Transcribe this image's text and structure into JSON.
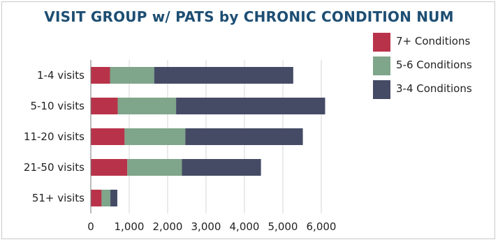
{
  "chart_data": {
    "type": "bar",
    "orientation": "horizontal",
    "stacked": true,
    "title": "VISIT GROUP w/ PATS by CHRONIC CONDITION NUM",
    "categories": [
      "1-4 visits",
      "5-10 visits",
      "11-20 visits",
      "21-50 visits",
      "51+ visits"
    ],
    "series": [
      {
        "name": "7+ Conditions",
        "color": "#b8334a",
        "values": [
          500,
          700,
          880,
          950,
          280
        ]
      },
      {
        "name": "5-6 Conditions",
        "color": "#7fa58a",
        "values": [
          1150,
          1520,
          1580,
          1420,
          230
        ]
      },
      {
        "name": "3-4 Conditions",
        "color": "#454b65",
        "values": [
          3620,
          3880,
          3060,
          2060,
          180
        ]
      }
    ],
    "xlim": [
      0,
      6000
    ],
    "xticks": [
      "0",
      "1,000",
      "2,000",
      "3,000",
      "4,000",
      "5,000",
      "6,000"
    ],
    "xlabel": "",
    "ylabel": "",
    "grid": true,
    "legend": "top-right"
  }
}
